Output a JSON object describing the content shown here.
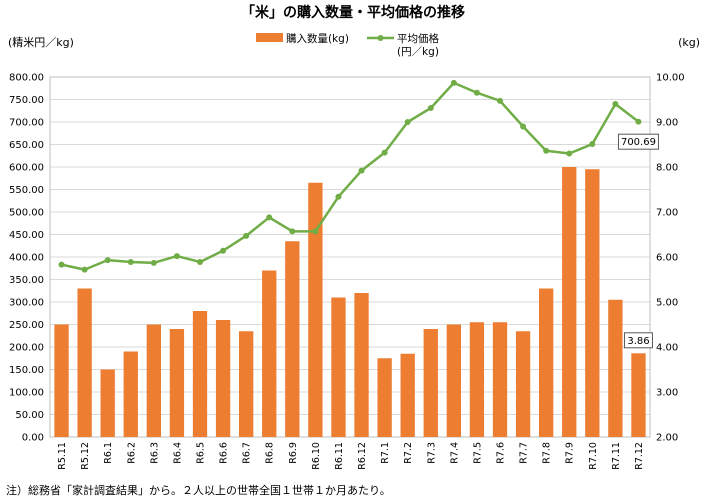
{
  "chart_data": {
    "type": "bar+line",
    "title": "「米」の購入数量・平均価格の推移",
    "left_axis_label": "(精米円／kg)",
    "right_axis_label": "(kg)",
    "note": "注）総務省「家計調査結果」から。２人以上の世帯全国１世帯１か月あたり。",
    "categories": [
      "R5.11",
      "R5.12",
      "R6.1",
      "R6.2",
      "R6.3",
      "R6.4",
      "R6.5",
      "R6.6",
      "R6.7",
      "R6.8",
      "R6.9",
      "R6.10",
      "R6.11",
      "R6.12",
      "R7.1",
      "R7.2",
      "R7.3",
      "R7.4",
      "R7.5",
      "R7.6",
      "R7.7",
      "R7.8",
      "R7.9",
      "R7.10",
      "R7.11",
      "R7.12"
    ],
    "series": [
      {
        "name": "購入数量(kg)",
        "type": "bar",
        "axis": "right",
        "color": "#ED7D31",
        "values": [
          4.5,
          5.3,
          3.5,
          3.9,
          4.5,
          4.4,
          4.8,
          4.6,
          4.35,
          5.7,
          6.35,
          7.65,
          5.1,
          5.2,
          3.75,
          3.85,
          4.4,
          4.5,
          4.55,
          4.55,
          4.35,
          5.3,
          8.0,
          7.95,
          5.05,
          3.86
        ]
      },
      {
        "name": "平均価格\n(円／kg)",
        "type": "line",
        "axis": "left",
        "color": "#70AD47",
        "values": [
          383,
          372,
          393,
          389,
          387,
          402,
          389,
          414,
          447,
          488,
          457,
          457,
          534,
          592,
          632,
          700,
          731,
          787,
          765,
          747,
          690,
          636,
          630,
          651,
          740,
          700.69
        ]
      }
    ],
    "left_ylim": [
      0,
      800
    ],
    "left_ticks": [
      "0.00",
      "50.00",
      "100.00",
      "150.00",
      "200.00",
      "250.00",
      "300.00",
      "350.00",
      "400.00",
      "450.00",
      "500.00",
      "550.00",
      "600.00",
      "650.00",
      "700.00",
      "750.00",
      "800.00"
    ],
    "right_ylim": [
      2,
      10
    ],
    "right_ticks": [
      "2.00",
      "3.00",
      "4.00",
      "5.00",
      "6.00",
      "7.00",
      "8.00",
      "9.00",
      "10.00"
    ],
    "data_labels": [
      {
        "series": "平均価格\n(円／kg)",
        "index": 25,
        "text": "700.69"
      },
      {
        "series": "購入数量(kg)",
        "index": 25,
        "text": "3.86"
      }
    ],
    "legend_position": "top"
  }
}
